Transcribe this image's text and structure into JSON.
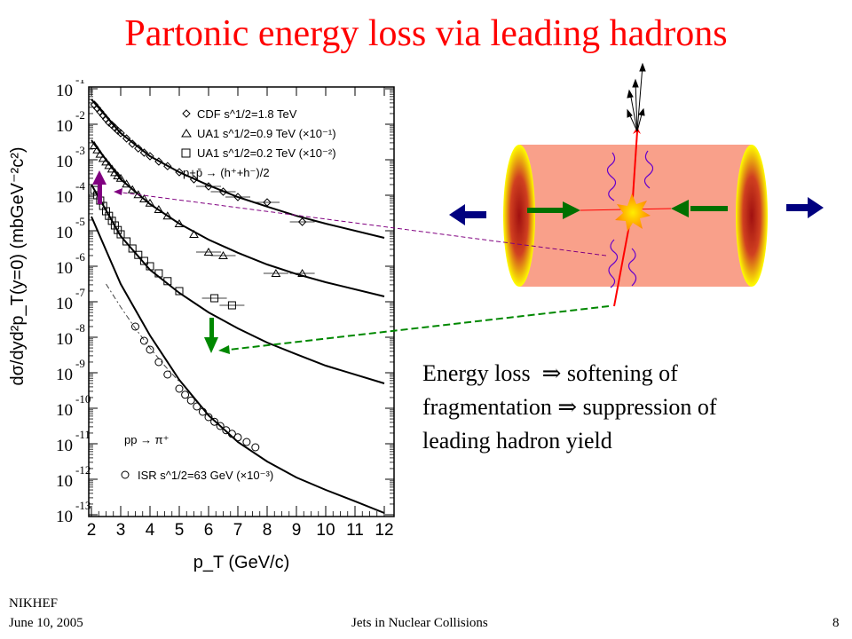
{
  "slide": {
    "title": "Partonic energy loss via leading hadrons",
    "caption": {
      "line1_a": "Energy loss",
      "line1_b": "softening of",
      "line2_a": "fragmentation",
      "line2_b": "suppression of",
      "line3": "leading hadron yield",
      "implies_symbol": "⇒"
    },
    "footer": {
      "organization": "NIKHEF",
      "date": "June 10, 2005",
      "talk_title": "Jets in Nuclear Collisions",
      "page_number": "8"
    }
  },
  "colors": {
    "title": "#ff0000",
    "cylinder_body": "#f9a08a",
    "cylinder_cap_outer": "#ffff00",
    "cylinder_cap_inner": "#a01010",
    "beam_arrow": "#000080",
    "green_arrow": "#007000",
    "red_line": "#ff0000",
    "gluon": "#6600cc",
    "purple_arrow": "#800080",
    "green_dashed": "#008800"
  },
  "chart_data": {
    "type": "scatter",
    "ylabel": "dσ/dyd²p_T(y=0) (mbGeV⁻²c²)",
    "xlabel": "p_T (GeV/c)",
    "xlim": [
      2,
      12
    ],
    "ylim_exponent": [
      -13,
      -1
    ],
    "x_ticks": [
      "2",
      "3",
      "4",
      "5",
      "6",
      "7",
      "8",
      "9",
      "10",
      "11",
      "12"
    ],
    "y_tick_base": "10",
    "y_tick_exponents": [
      "-1",
      "-2",
      "-3",
      "-4",
      "-5",
      "-6",
      "-7",
      "-8",
      "-9",
      "-10",
      "-11",
      "-12",
      "-13"
    ],
    "legend": {
      "cdf": "CDF s^1/2=1.8 TeV",
      "ua1a": "UA1 s^1/2=0.9 TeV (×10⁻¹)",
      "ua1b": "UA1 s^1/2=0.2 TeV (×10⁻²)",
      "reaction1": "p+p̄ → (h⁺+h⁻)/2",
      "reaction2": "pp → π⁺",
      "isr": "ISR s^1/2=63 GeV (×10⁻³)"
    },
    "series": [
      {
        "name": "CDF s^1/2=1.8 TeV",
        "marker": "diamond",
        "x": [
          2.1,
          2.2,
          2.3,
          2.4,
          2.5,
          2.6,
          2.7,
          2.8,
          2.9,
          3.0,
          3.2,
          3.4,
          3.6,
          3.8,
          4.0,
          4.3,
          4.6,
          5.0,
          5.5,
          6.0,
          6.5,
          7.0,
          8.0,
          9.2
        ],
        "log10y": [
          -1.45,
          -1.55,
          -1.65,
          -1.75,
          -1.85,
          -1.95,
          -2.02,
          -2.1,
          -2.18,
          -2.25,
          -2.4,
          -2.55,
          -2.68,
          -2.8,
          -2.9,
          -3.05,
          -3.18,
          -3.35,
          -3.55,
          -3.75,
          -3.9,
          -4.05,
          -4.2,
          -4.75
        ]
      },
      {
        "name": "UA1 s^1/2=0.9 TeV (×10⁻¹)",
        "marker": "triangle",
        "x": [
          2.1,
          2.2,
          2.3,
          2.4,
          2.5,
          2.6,
          2.7,
          2.8,
          2.9,
          3.0,
          3.2,
          3.4,
          3.6,
          3.8,
          4.0,
          4.3,
          4.6,
          5.0,
          5.5,
          6.0,
          6.5,
          8.3,
          9.2
        ],
        "log10y": [
          -2.6,
          -2.72,
          -2.84,
          -2.96,
          -3.06,
          -3.16,
          -3.26,
          -3.36,
          -3.45,
          -3.52,
          -3.68,
          -3.84,
          -3.98,
          -4.1,
          -4.22,
          -4.4,
          -4.58,
          -4.8,
          -5.1,
          -5.6,
          -5.7,
          -6.2,
          -6.2
        ]
      },
      {
        "name": "UA1 s^1/2=0.2 TeV (×10⁻²)",
        "marker": "square",
        "x": [
          2.1,
          2.2,
          2.3,
          2.4,
          2.5,
          2.6,
          2.7,
          2.8,
          2.9,
          3.0,
          3.2,
          3.4,
          3.6,
          3.8,
          4.0,
          4.3,
          4.6,
          5.0,
          6.2,
          6.8
        ],
        "log10y": [
          -3.85,
          -4.0,
          -4.15,
          -4.3,
          -4.45,
          -4.58,
          -4.72,
          -4.85,
          -4.98,
          -5.1,
          -5.3,
          -5.5,
          -5.68,
          -5.85,
          -6.0,
          -6.2,
          -6.42,
          -6.7,
          -6.9,
          -7.1
        ]
      },
      {
        "name": "ISR s^1/2=63 GeV (×10⁻³)",
        "marker": "circle",
        "x": [
          3.5,
          3.8,
          4.0,
          4.3,
          4.6,
          5.0,
          5.2,
          5.4,
          5.6,
          5.8,
          6.0,
          6.2,
          6.4,
          6.6,
          6.8,
          7.0,
          7.3,
          7.6
        ],
        "log10y": [
          -7.7,
          -8.1,
          -8.35,
          -8.7,
          -9.05,
          -9.45,
          -9.62,
          -9.78,
          -9.95,
          -10.1,
          -10.25,
          -10.38,
          -10.5,
          -10.62,
          -10.72,
          -10.82,
          -10.95,
          -11.1
        ]
      }
    ],
    "fit_curves": [
      {
        "x": [
          2.0,
          3.0,
          4.0,
          5.0,
          6.0,
          7.0,
          8.0,
          9.0,
          10.0,
          12.0
        ],
        "log10y": [
          -1.3,
          -2.25,
          -2.9,
          -3.35,
          -3.72,
          -4.05,
          -4.32,
          -4.58,
          -4.8,
          -5.2
        ]
      },
      {
        "x": [
          2.0,
          3.0,
          4.0,
          5.0,
          6.0,
          7.0,
          8.0,
          9.0,
          10.0,
          12.0
        ],
        "log10y": [
          -2.45,
          -3.55,
          -4.25,
          -4.8,
          -5.25,
          -5.62,
          -5.95,
          -6.22,
          -6.45,
          -6.85
        ]
      },
      {
        "x": [
          2.0,
          3.0,
          4.0,
          5.0,
          6.0,
          7.0,
          8.0,
          9.0,
          10.0,
          12.0
        ],
        "log10y": [
          -3.7,
          -5.15,
          -6.1,
          -6.75,
          -7.3,
          -7.75,
          -8.15,
          -8.48,
          -8.8,
          -9.3
        ]
      },
      {
        "x": [
          2.0,
          3.0,
          4.0,
          5.0,
          6.0,
          7.0,
          8.0,
          9.0,
          10.0,
          11.0,
          12.0
        ],
        "log10y": [
          -4.6,
          -6.5,
          -7.95,
          -9.2,
          -10.2,
          -10.95,
          -11.5,
          -11.95,
          -12.3,
          -12.62,
          -12.95
        ]
      }
    ],
    "dashed_curve": {
      "x": [
        2.5,
        3.0,
        3.5,
        4.0,
        4.5,
        5.0
      ],
      "log10y": [
        -6.5,
        -7.15,
        -7.75,
        -8.3,
        -8.8,
        -9.25
      ]
    }
  }
}
